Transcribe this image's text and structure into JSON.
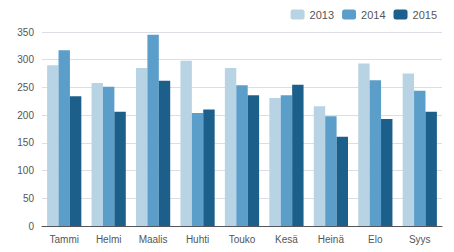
{
  "chart_data": {
    "type": "bar",
    "categories": [
      "Tammi",
      "Helmi",
      "Maalis",
      "Huhti",
      "Touko",
      "Kesä",
      "Heinä",
      "Elo",
      "Syys"
    ],
    "series": [
      {
        "name": "2013",
        "color": "#b8d4e4",
        "values": [
          290,
          258,
          285,
          298,
          285,
          231,
          216,
          293,
          275
        ]
      },
      {
        "name": "2014",
        "color": "#5b9ec9",
        "values": [
          317,
          251,
          345,
          204,
          254,
          236,
          198,
          263,
          244
        ]
      },
      {
        "name": "2015",
        "color": "#1c5f8a",
        "values": [
          234,
          206,
          262,
          210,
          236,
          255,
          161,
          193,
          206
        ]
      }
    ],
    "ylim": [
      0,
      350
    ],
    "yticks": [
      0,
      50,
      100,
      150,
      200,
      250,
      300,
      350
    ],
    "grid": true,
    "legend": "upper right"
  }
}
